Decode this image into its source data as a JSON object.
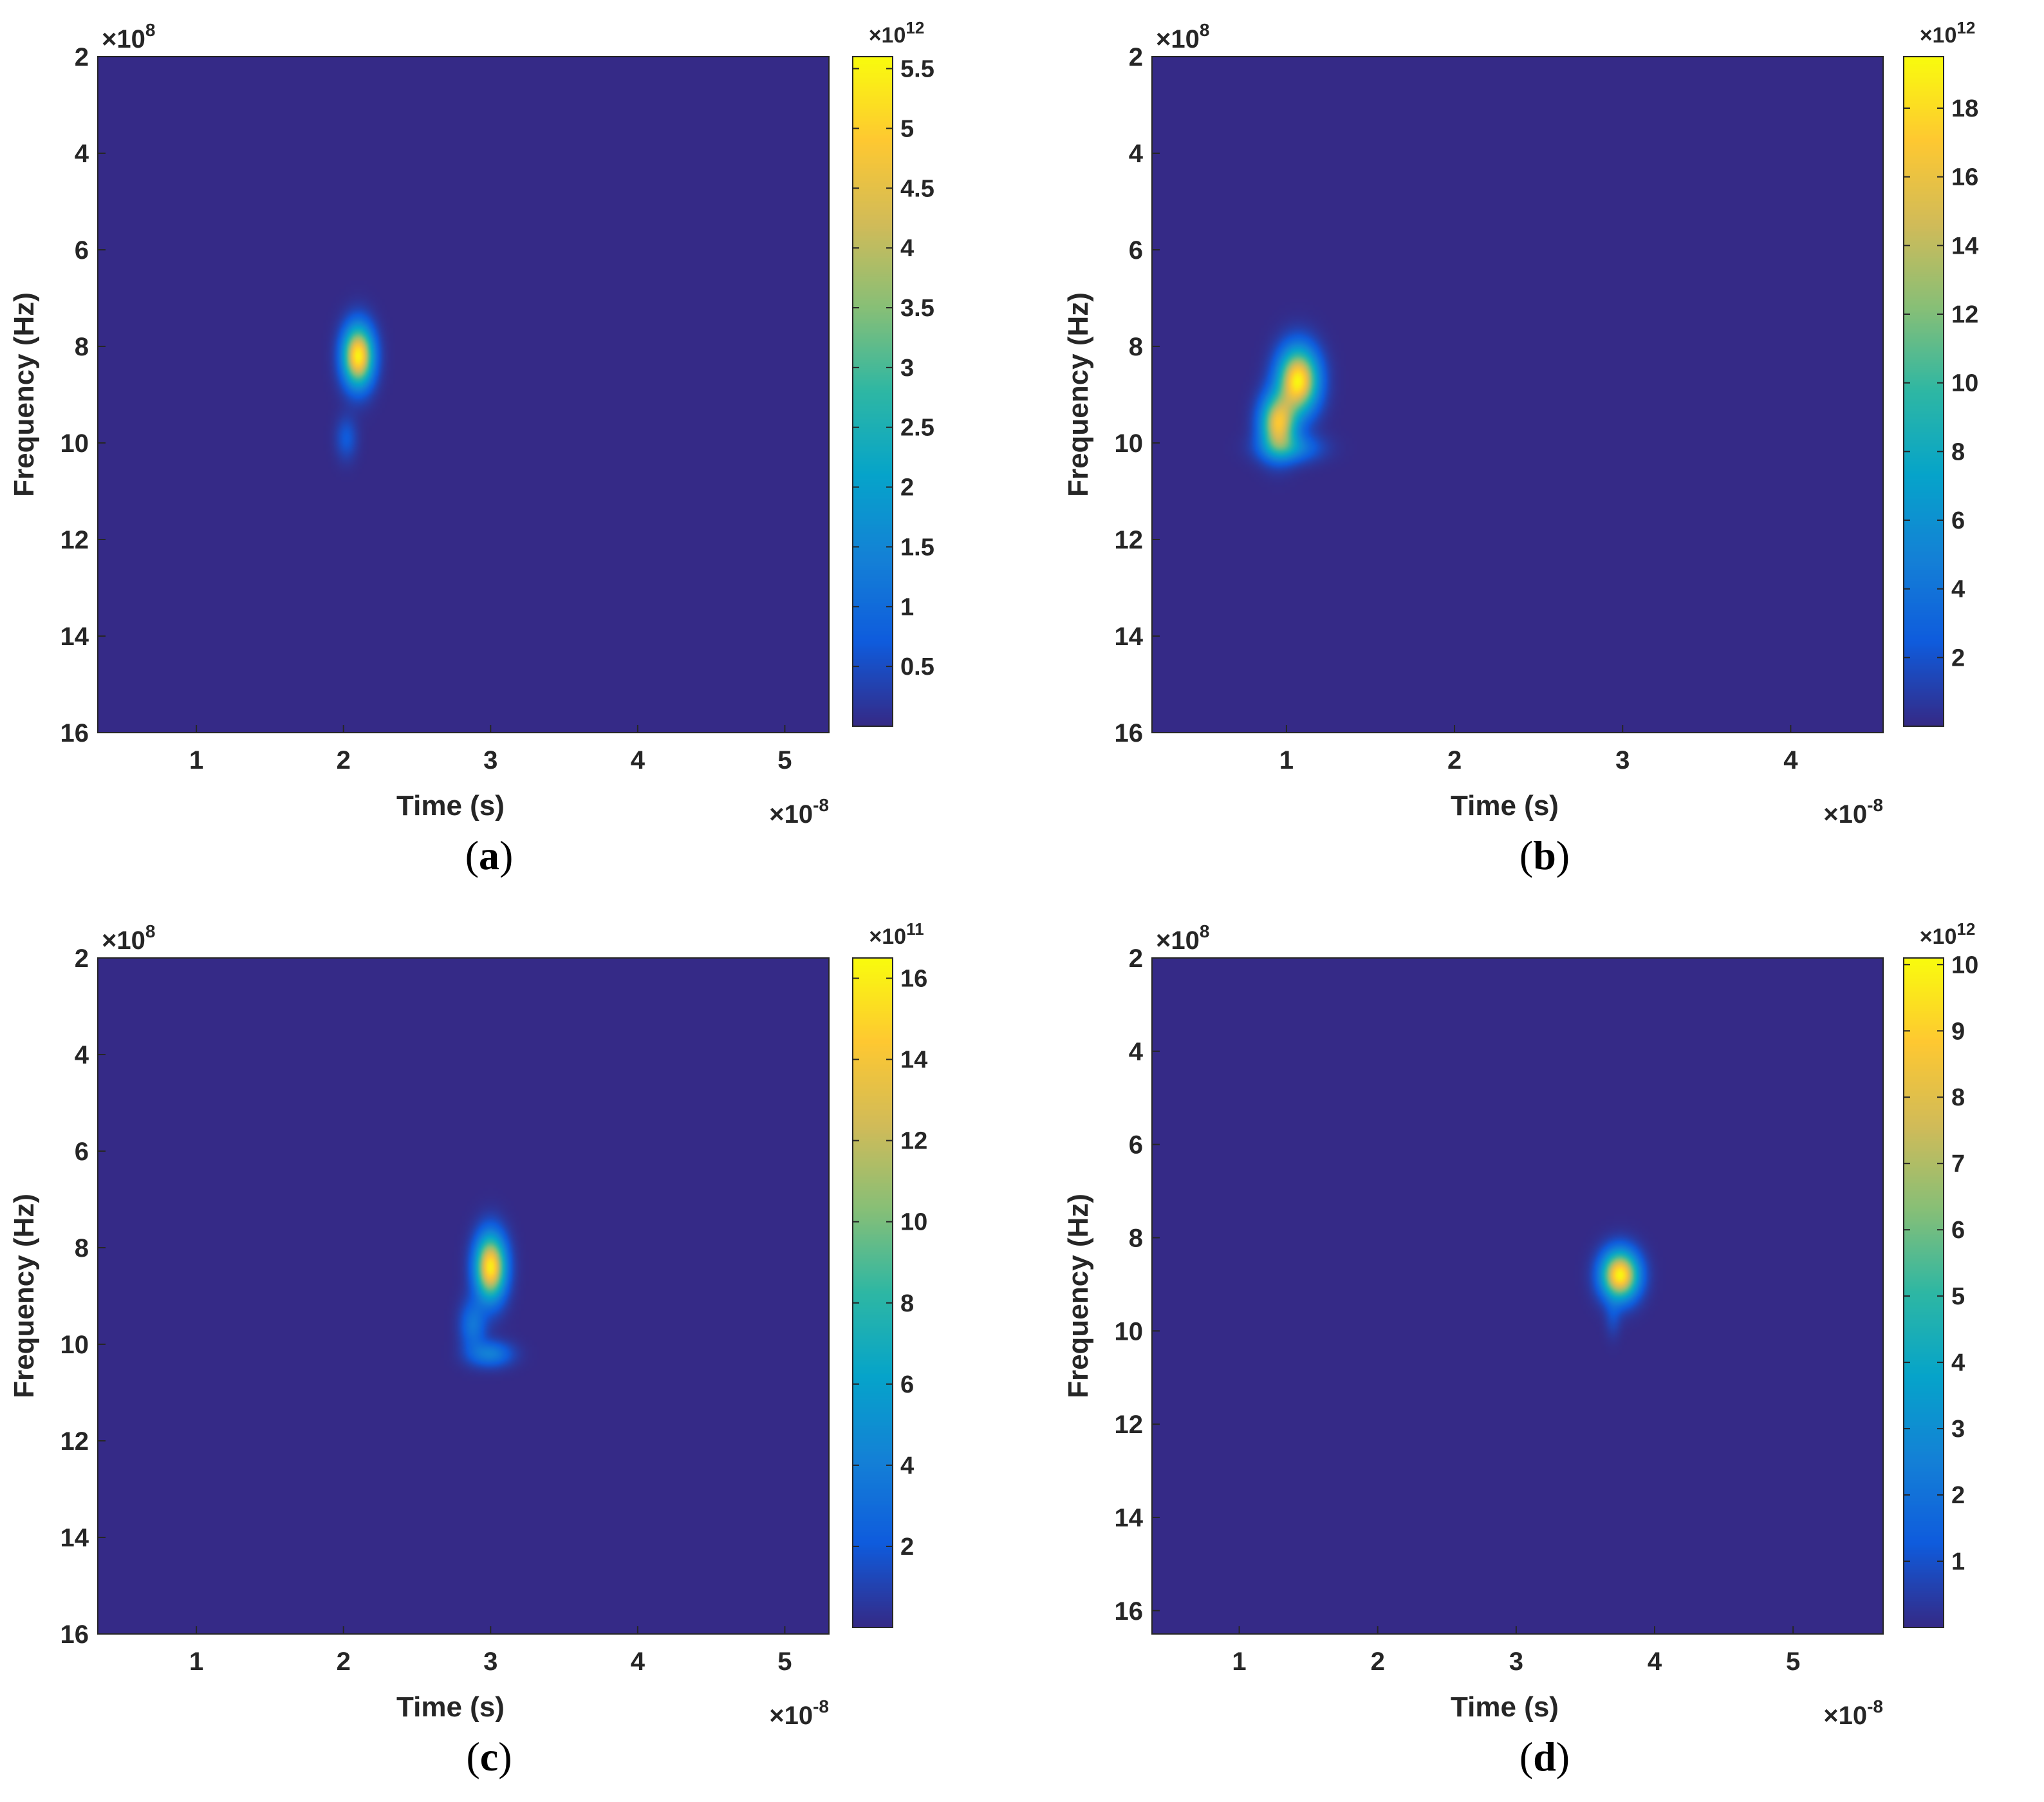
{
  "colors": {
    "background_colormap_low": "#352a87",
    "colormap": [
      "#352a87",
      "#0f5cdd",
      "#1481d6",
      "#06a4ca",
      "#2eb7a4",
      "#87bf77",
      "#d1bb59",
      "#fec832",
      "#f9fb0e"
    ]
  },
  "chart_data": [
    {
      "panel_label": "(a)",
      "panel_letter": "a",
      "type": "heatmap",
      "xlabel": "Time (s)",
      "ylabel": "Frequency (Hz)",
      "x_exponent_label": "×10",
      "x_exponent": "-8",
      "y_exponent_label": "×10",
      "y_exponent": "8",
      "xlim": [
        0.33,
        5.3
      ],
      "ylim": [
        2,
        16
      ],
      "y_reversed": true,
      "xticks": [
        1,
        2,
        3,
        4,
        5
      ],
      "yticks": [
        2,
        4,
        6,
        8,
        10,
        12,
        14,
        16
      ],
      "colorbar": {
        "exponent_label": "×10",
        "exponent": "12",
        "range": [
          0,
          5.6
        ],
        "ticks": [
          0.5,
          1,
          1.5,
          2,
          2.5,
          3,
          3.5,
          4,
          4.5,
          5,
          5.5
        ],
        "tick_labels": [
          "0.5",
          "1",
          "1.5",
          "2",
          "2.5",
          "3",
          "3.5",
          "4",
          "4.5",
          "5",
          "5.5"
        ]
      },
      "blobs": [
        {
          "t": 2.1,
          "f": 8.2,
          "sigma_t": 0.07,
          "sigma_f": 0.42,
          "peak": 5.5
        },
        {
          "t": 2.02,
          "f": 9.9,
          "sigma_t": 0.05,
          "sigma_f": 0.3,
          "peak": 0.7
        }
      ]
    },
    {
      "panel_label": "(b)",
      "panel_letter": "b",
      "type": "heatmap",
      "xlabel": "Time (s)",
      "ylabel": "Frequency (Hz)",
      "x_exponent_label": "×10",
      "x_exponent": "-8",
      "y_exponent_label": "×10",
      "y_exponent": "8",
      "xlim": [
        0.2,
        4.55
      ],
      "ylim": [
        2,
        16
      ],
      "y_reversed": true,
      "xticks": [
        1,
        2,
        3,
        4
      ],
      "yticks": [
        2,
        4,
        6,
        8,
        10,
        12,
        14,
        16
      ],
      "colorbar": {
        "exponent_label": "×10",
        "exponent": "12",
        "range": [
          0,
          19.5
        ],
        "ticks": [
          2,
          4,
          6,
          8,
          10,
          12,
          14,
          16,
          18
        ],
        "tick_labels": [
          "2",
          "4",
          "6",
          "8",
          "10",
          "12",
          "14",
          "16",
          "18"
        ]
      },
      "blobs": [
        {
          "t": 1.07,
          "f": 8.7,
          "sigma_t": 0.08,
          "sigma_f": 0.45,
          "peak": 19
        },
        {
          "t": 0.95,
          "f": 9.6,
          "sigma_t": 0.07,
          "sigma_f": 0.4,
          "peak": 16
        },
        {
          "t": 1.02,
          "f": 10.1,
          "sigma_t": 0.12,
          "sigma_f": 0.2,
          "peak": 5
        }
      ]
    },
    {
      "panel_label": "(c)",
      "panel_letter": "c",
      "type": "heatmap",
      "xlabel": "Time (s)",
      "ylabel": "Frequency (Hz)",
      "x_exponent_label": "×10",
      "x_exponent": "-8",
      "y_exponent_label": "×10",
      "y_exponent": "8",
      "xlim": [
        0.33,
        5.3
      ],
      "ylim": [
        2,
        16
      ],
      "y_reversed": true,
      "xticks": [
        1,
        2,
        3,
        4,
        5
      ],
      "yticks": [
        2,
        4,
        6,
        8,
        10,
        12,
        14,
        16
      ],
      "colorbar": {
        "exponent_label": "×10",
        "exponent": "11",
        "range": [
          0,
          16.5
        ],
        "ticks": [
          2,
          4,
          6,
          8,
          10,
          12,
          14,
          16
        ],
        "tick_labels": [
          "2",
          "4",
          "6",
          "8",
          "10",
          "12",
          "14",
          "16"
        ]
      },
      "blobs": [
        {
          "t": 3.0,
          "f": 8.4,
          "sigma_t": 0.07,
          "sigma_f": 0.45,
          "peak": 16
        },
        {
          "t": 2.88,
          "f": 9.6,
          "sigma_t": 0.06,
          "sigma_f": 0.35,
          "peak": 3.5
        },
        {
          "t": 3.0,
          "f": 10.2,
          "sigma_t": 0.1,
          "sigma_f": 0.18,
          "peak": 4
        }
      ]
    },
    {
      "panel_label": "(d)",
      "panel_letter": "d",
      "type": "heatmap",
      "xlabel": "Time (s)",
      "ylabel": "Frequency (Hz)",
      "x_exponent_label": "×10",
      "x_exponent": "-8",
      "y_exponent_label": "×10",
      "y_exponent": "8",
      "xlim": [
        0.37,
        5.65
      ],
      "ylim": [
        2,
        16.5
      ],
      "y_reversed": true,
      "xticks": [
        1,
        2,
        3,
        4,
        5
      ],
      "yticks": [
        2,
        4,
        6,
        8,
        10,
        12,
        14,
        16
      ],
      "colorbar": {
        "exponent_label": "×10",
        "exponent": "12",
        "range": [
          0,
          10.1
        ],
        "ticks": [
          1,
          2,
          3,
          4,
          5,
          6,
          7,
          8,
          9,
          10
        ],
        "tick_labels": [
          "1",
          "2",
          "3",
          "4",
          "5",
          "6",
          "7",
          "8",
          "9",
          "10"
        ]
      },
      "blobs": [
        {
          "t": 3.75,
          "f": 8.8,
          "sigma_t": 0.09,
          "sigma_f": 0.35,
          "peak": 10
        },
        {
          "t": 3.7,
          "f": 9.7,
          "sigma_t": 0.04,
          "sigma_f": 0.3,
          "peak": 0.8
        }
      ]
    }
  ]
}
